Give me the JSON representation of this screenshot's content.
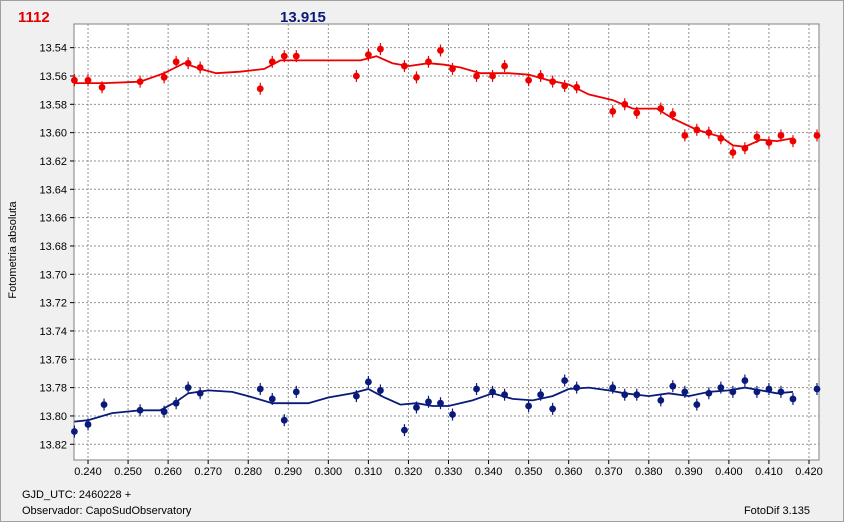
{
  "header": {
    "left_value": "1112",
    "center_value": "13.915"
  },
  "footer": {
    "gjd": "GJD_UTC: 2460228 +",
    "observer": "Observador: CapoSudObservatory",
    "version": "FotoDif 3.135"
  },
  "colors": {
    "series_red": "#ee0000",
    "series_blue": "#0a1a7a",
    "grid": "#909090"
  },
  "chart_data": {
    "type": "scatter",
    "ylabel": "Fotometria absoluta",
    "xlim": [
      0.2365,
      0.4225
    ],
    "ylim": [
      13.5233,
      13.8311
    ],
    "y_inverted": true,
    "grid": true,
    "x_ticks": [
      0.24,
      0.25,
      0.26,
      0.27,
      0.28,
      0.29,
      0.3,
      0.31,
      0.32,
      0.33,
      0.34,
      0.35,
      0.36,
      0.37,
      0.38,
      0.39,
      0.4,
      0.41,
      0.42
    ],
    "x_tick_labels": [
      "0.240",
      "0.250",
      "0.260",
      "0.270",
      "0.280",
      "0.290",
      "0.300",
      "0.310",
      "0.320",
      "0.330",
      "0.340",
      "0.350",
      "0.360",
      "0.370",
      "0.380",
      "0.390",
      "0.400",
      "0.410",
      "0.420"
    ],
    "y_ticks": [
      13.54,
      13.56,
      13.58,
      13.6,
      13.62,
      13.64,
      13.66,
      13.68,
      13.7,
      13.72,
      13.74,
      13.76,
      13.78,
      13.8,
      13.82
    ],
    "y_tick_labels": [
      "13.54",
      "13.56",
      "13.58",
      "13.60",
      "13.62",
      "13.64",
      "13.66",
      "13.68",
      "13.70",
      "13.72",
      "13.74",
      "13.76",
      "13.78",
      "13.80",
      "13.82"
    ],
    "series": [
      {
        "color": "#ee0000",
        "points": [
          [
            0.2366,
            13.563
          ],
          [
            0.24,
            13.563
          ],
          [
            0.2435,
            13.568
          ],
          [
            0.253,
            13.564
          ],
          [
            0.259,
            13.561
          ],
          [
            0.262,
            13.55
          ],
          [
            0.265,
            13.551
          ],
          [
            0.268,
            13.554
          ],
          [
            0.283,
            13.569
          ],
          [
            0.286,
            13.55
          ],
          [
            0.289,
            13.546
          ],
          [
            0.292,
            13.546
          ],
          [
            0.307,
            13.56
          ],
          [
            0.31,
            13.545
          ],
          [
            0.313,
            13.541
          ],
          [
            0.319,
            13.553
          ],
          [
            0.322,
            13.561
          ],
          [
            0.325,
            13.55
          ],
          [
            0.328,
            13.542
          ],
          [
            0.331,
            13.555
          ],
          [
            0.337,
            13.56
          ],
          [
            0.341,
            13.56
          ],
          [
            0.344,
            13.553
          ],
          [
            0.35,
            13.563
          ],
          [
            0.353,
            13.56
          ],
          [
            0.356,
            13.564
          ],
          [
            0.359,
            13.567
          ],
          [
            0.362,
            13.568
          ],
          [
            0.371,
            13.585
          ],
          [
            0.374,
            13.58
          ],
          [
            0.377,
            13.586
          ],
          [
            0.383,
            13.583
          ],
          [
            0.386,
            13.587
          ],
          [
            0.389,
            13.602
          ],
          [
            0.392,
            13.598
          ],
          [
            0.395,
            13.6
          ],
          [
            0.398,
            13.604
          ],
          [
            0.401,
            13.614
          ],
          [
            0.404,
            13.611
          ],
          [
            0.407,
            13.603
          ],
          [
            0.41,
            13.607
          ],
          [
            0.413,
            13.602
          ],
          [
            0.416,
            13.606
          ],
          [
            0.422,
            13.602
          ]
        ],
        "trend": [
          [
            0.2366,
            13.565
          ],
          [
            0.244,
            13.565
          ],
          [
            0.253,
            13.564
          ],
          [
            0.259,
            13.558
          ],
          [
            0.264,
            13.551
          ],
          [
            0.268,
            13.555
          ],
          [
            0.272,
            13.558
          ],
          [
            0.278,
            13.557
          ],
          [
            0.284,
            13.555
          ],
          [
            0.288,
            13.549
          ],
          [
            0.293,
            13.549
          ],
          [
            0.3,
            13.549
          ],
          [
            0.308,
            13.549
          ],
          [
            0.312,
            13.546
          ],
          [
            0.316,
            13.551
          ],
          [
            0.32,
            13.553
          ],
          [
            0.325,
            13.551
          ],
          [
            0.329,
            13.552
          ],
          [
            0.333,
            13.554
          ],
          [
            0.338,
            13.558
          ],
          [
            0.345,
            13.558
          ],
          [
            0.35,
            13.559
          ],
          [
            0.355,
            13.563
          ],
          [
            0.36,
            13.566
          ],
          [
            0.365,
            13.573
          ],
          [
            0.371,
            13.577
          ],
          [
            0.376,
            13.583
          ],
          [
            0.382,
            13.583
          ],
          [
            0.386,
            13.59
          ],
          [
            0.392,
            13.598
          ],
          [
            0.398,
            13.603
          ],
          [
            0.401,
            13.609
          ],
          [
            0.404,
            13.61
          ],
          [
            0.408,
            13.605
          ],
          [
            0.412,
            13.606
          ],
          [
            0.416,
            13.604
          ]
        ]
      },
      {
        "color": "#0a1a7a",
        "points": [
          [
            0.2366,
            13.811
          ],
          [
            0.24,
            13.806
          ],
          [
            0.244,
            13.792
          ],
          [
            0.253,
            13.796
          ],
          [
            0.259,
            13.797
          ],
          [
            0.262,
            13.791
          ],
          [
            0.265,
            13.78
          ],
          [
            0.268,
            13.784
          ],
          [
            0.283,
            13.781
          ],
          [
            0.286,
            13.788
          ],
          [
            0.289,
            13.803
          ],
          [
            0.292,
            13.783
          ],
          [
            0.307,
            13.786
          ],
          [
            0.31,
            13.776
          ],
          [
            0.313,
            13.782
          ],
          [
            0.319,
            13.81
          ],
          [
            0.322,
            13.794
          ],
          [
            0.325,
            13.79
          ],
          [
            0.328,
            13.791
          ],
          [
            0.331,
            13.799
          ],
          [
            0.337,
            13.781
          ],
          [
            0.341,
            13.783
          ],
          [
            0.344,
            13.785
          ],
          [
            0.35,
            13.793
          ],
          [
            0.353,
            13.785
          ],
          [
            0.356,
            13.795
          ],
          [
            0.359,
            13.775
          ],
          [
            0.362,
            13.78
          ],
          [
            0.371,
            13.78
          ],
          [
            0.374,
            13.785
          ],
          [
            0.377,
            13.785
          ],
          [
            0.383,
            13.789
          ],
          [
            0.386,
            13.779
          ],
          [
            0.389,
            13.783
          ],
          [
            0.392,
            13.792
          ],
          [
            0.395,
            13.784
          ],
          [
            0.398,
            13.78
          ],
          [
            0.401,
            13.783
          ],
          [
            0.404,
            13.775
          ],
          [
            0.407,
            13.783
          ],
          [
            0.41,
            13.781
          ],
          [
            0.413,
            13.783
          ],
          [
            0.416,
            13.788
          ],
          [
            0.422,
            13.781
          ]
        ],
        "trend": [
          [
            0.2366,
            13.804
          ],
          [
            0.24,
            13.803
          ],
          [
            0.246,
            13.798
          ],
          [
            0.253,
            13.796
          ],
          [
            0.258,
            13.796
          ],
          [
            0.262,
            13.79
          ],
          [
            0.265,
            13.784
          ],
          [
            0.27,
            13.782
          ],
          [
            0.276,
            13.783
          ],
          [
            0.28,
            13.786
          ],
          [
            0.286,
            13.791
          ],
          [
            0.29,
            13.791
          ],
          [
            0.295,
            13.791
          ],
          [
            0.3,
            13.787
          ],
          [
            0.306,
            13.784
          ],
          [
            0.31,
            13.781
          ],
          [
            0.314,
            13.787
          ],
          [
            0.318,
            13.792
          ],
          [
            0.322,
            13.791
          ],
          [
            0.326,
            13.793
          ],
          [
            0.33,
            13.793
          ],
          [
            0.336,
            13.789
          ],
          [
            0.341,
            13.784
          ],
          [
            0.346,
            13.788
          ],
          [
            0.351,
            13.789
          ],
          [
            0.356,
            13.786
          ],
          [
            0.36,
            13.781
          ],
          [
            0.365,
            13.78
          ],
          [
            0.37,
            13.782
          ],
          [
            0.374,
            13.784
          ],
          [
            0.38,
            13.786
          ],
          [
            0.385,
            13.784
          ],
          [
            0.39,
            13.786
          ],
          [
            0.395,
            13.783
          ],
          [
            0.4,
            13.782
          ],
          [
            0.404,
            13.78
          ],
          [
            0.408,
            13.782
          ],
          [
            0.412,
            13.784
          ],
          [
            0.416,
            13.783
          ]
        ]
      }
    ]
  }
}
